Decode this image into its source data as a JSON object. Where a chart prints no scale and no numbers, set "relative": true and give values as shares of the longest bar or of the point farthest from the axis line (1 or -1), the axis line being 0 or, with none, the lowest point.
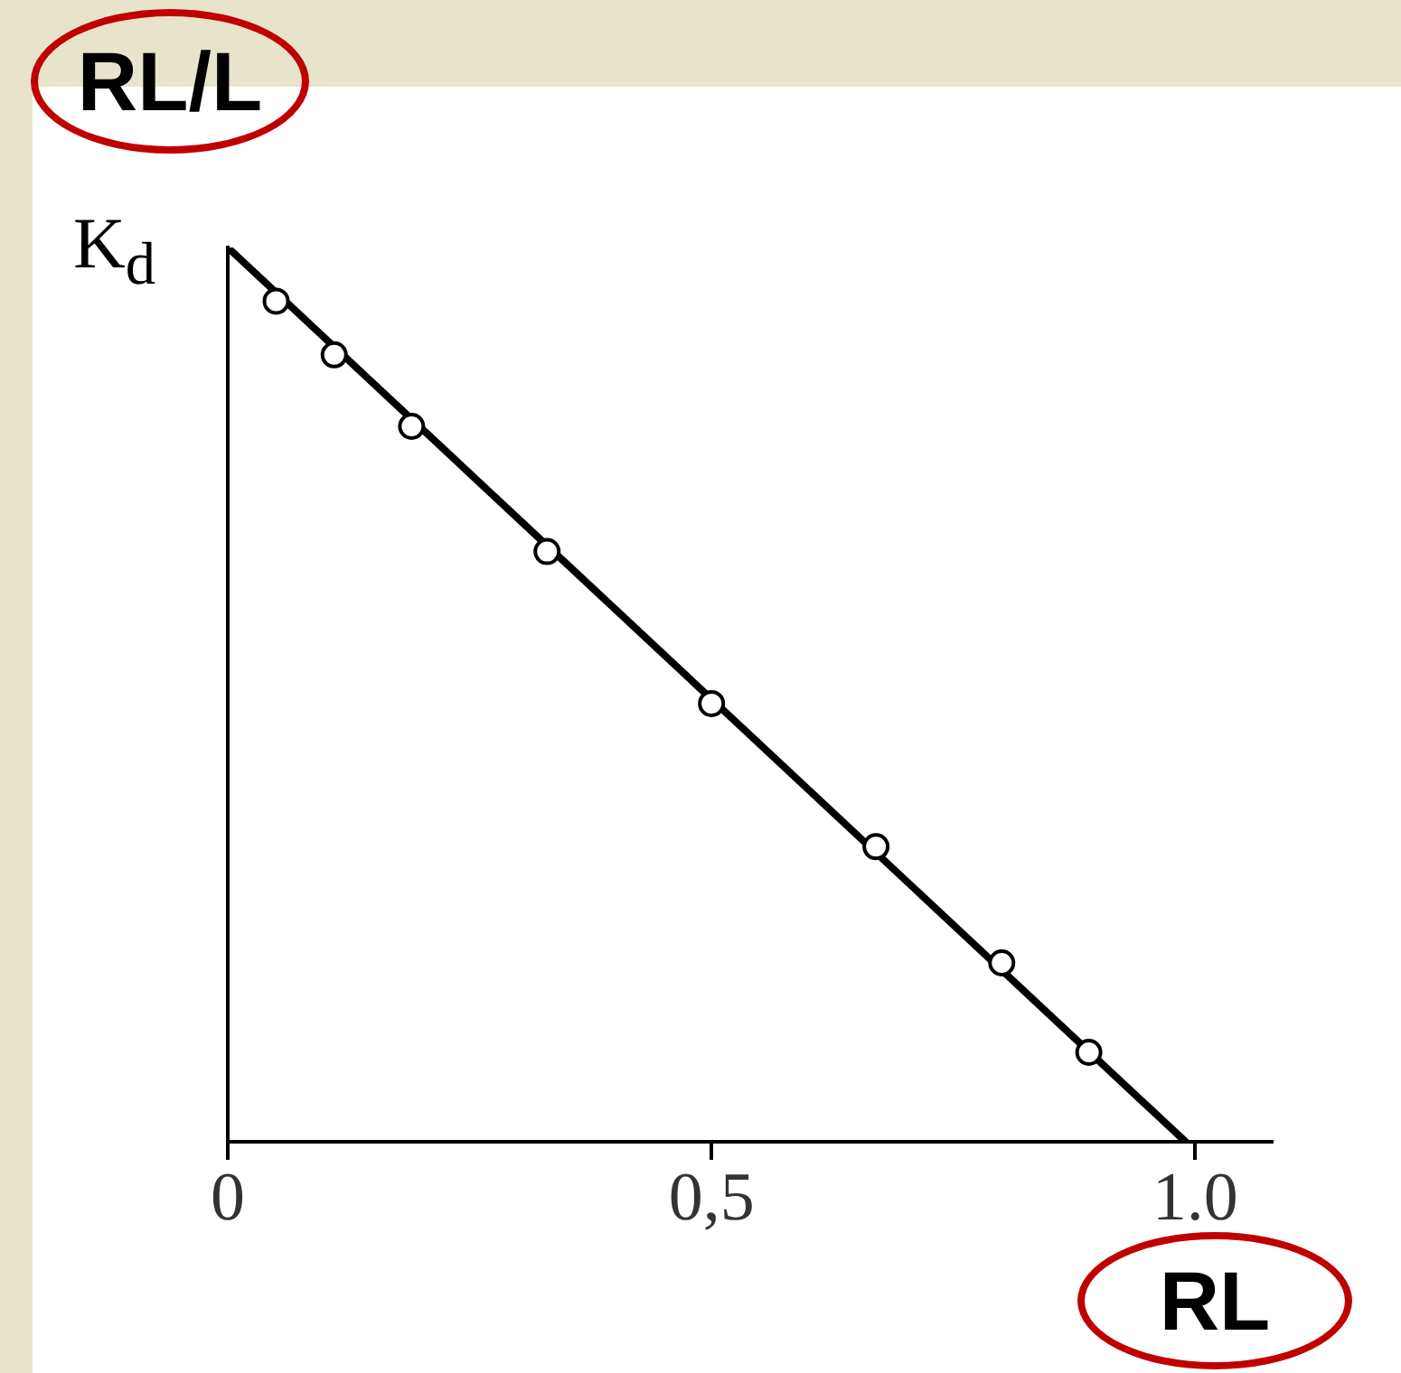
{
  "chart_data": {
    "type": "scatter",
    "xlabel": "RL",
    "ylabel": "RL/L",
    "annotations": [
      {
        "text": "K$_{d}$",
        "x": 0,
        "y": 1
      }
    ],
    "relative": true,
    "xlim": [
      0,
      1.08
    ],
    "xticks": [
      0,
      {
        "value": 0.5,
        "label": "0,5"
      },
      {
        "value": 1,
        "label": "1.0"
      }
    ],
    "grid": false,
    "legend": false,
    "marker": "circle",
    "series": [
      {
        "type": "line",
        "color": "#000000",
        "marker": "none",
        "x": [
          0,
          0.99
        ],
        "values": [
          1,
          0
        ]
      },
      {
        "type": "scatter",
        "color": "#000000",
        "x": [
          0.05,
          0.11,
          0.19,
          0.33,
          0.5,
          0.67,
          0.8,
          0.89
        ],
        "values": [
          0.94,
          0.88,
          0.8,
          0.66,
          0.49,
          0.33,
          0.2,
          0.1
        ]
      }
    ]
  }
}
